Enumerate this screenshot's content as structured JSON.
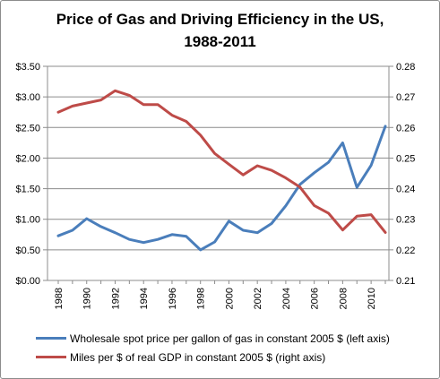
{
  "chart_data": {
    "type": "line",
    "title_line1": "Price of Gas and Driving Efficiency in the US,",
    "title_line2": "1988-2011",
    "x": [
      1988,
      1989,
      1990,
      1991,
      1992,
      1993,
      1994,
      1995,
      1996,
      1997,
      1998,
      1999,
      2000,
      2001,
      2002,
      2003,
      2004,
      2005,
      2006,
      2007,
      2008,
      2009,
      2010,
      2011
    ],
    "x_tick_labels": [
      "1988",
      "1990",
      "1992",
      "1994",
      "1996",
      "1998",
      "2000",
      "2002",
      "2004",
      "2006",
      "2008",
      "2010"
    ],
    "y_left": {
      "ylim": [
        0,
        3.5
      ],
      "tick_labels": [
        "$0.00",
        "$0.50",
        "$1.00",
        "$1.50",
        "$2.00",
        "$2.50",
        "$3.00",
        "$3.50"
      ]
    },
    "y_right": {
      "ylim": [
        0.21,
        0.28
      ],
      "tick_labels": [
        "0.21",
        "0.22",
        "0.23",
        "0.24",
        "0.25",
        "0.26",
        "0.27",
        "0.28"
      ]
    },
    "grid": "horizontal",
    "legend_position": "bottom",
    "series": [
      {
        "name": "Wholesale spot price per gallon of gas in constant 2005 $ (left axis)",
        "axis": "left",
        "color": "#4a7ebb",
        "values": [
          0.73,
          0.82,
          1.01,
          0.88,
          0.78,
          0.67,
          0.62,
          0.67,
          0.75,
          0.72,
          0.5,
          0.63,
          0.97,
          0.82,
          0.78,
          0.93,
          1.22,
          1.57,
          1.76,
          1.93,
          2.25,
          1.52,
          1.88,
          2.52
        ]
      },
      {
        "name": "Miles per $ of real GDP in constant 2005 $ (right axis)",
        "axis": "right",
        "color": "#be4b48",
        "values": [
          0.265,
          0.267,
          0.268,
          0.269,
          0.272,
          0.2705,
          0.2675,
          0.2675,
          0.264,
          0.262,
          0.2575,
          0.2515,
          0.248,
          0.2445,
          0.2475,
          0.246,
          0.2435,
          0.2405,
          0.2345,
          0.232,
          0.2265,
          0.231,
          0.2315,
          0.2257
        ]
      }
    ]
  }
}
